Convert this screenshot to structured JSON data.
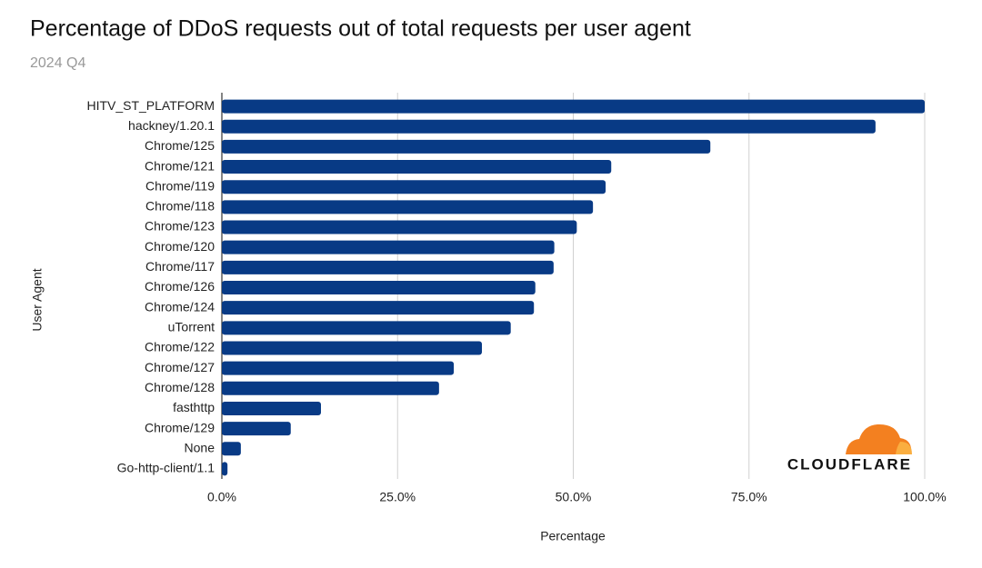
{
  "chart_data": {
    "type": "bar",
    "orientation": "horizontal",
    "title": "Percentage of DDoS requests out of total requests per user agent",
    "subtitle": "2024 Q4",
    "x_label": "Percentage",
    "y_label": "User Agent",
    "brand": "CLOUDFLARE",
    "categories": [
      "HITV_ST_PLATFORM",
      "hackney/1.20.1",
      "Chrome/125",
      "Chrome/121",
      "Chrome/119",
      "Chrome/118",
      "Chrome/123",
      "Chrome/120",
      "Chrome/117",
      "Chrome/126",
      "Chrome/124",
      "uTorrent",
      "Chrome/122",
      "Chrome/127",
      "Chrome/128",
      "fasthttp",
      "Chrome/129",
      "None",
      "Go-http-client/1.1"
    ],
    "values": [
      100,
      93.0,
      69.5,
      55.4,
      54.6,
      52.8,
      50.5,
      47.3,
      47.2,
      44.6,
      44.4,
      41.1,
      37.0,
      33.0,
      30.9,
      14.1,
      9.8,
      2.7,
      0.8
    ],
    "color": "#083a85",
    "xlim": [
      0,
      100
    ],
    "xticks": [
      {
        "value": 0,
        "label": "0.0%"
      },
      {
        "value": 25,
        "label": "25.0%"
      },
      {
        "value": 50,
        "label": "50.0%"
      },
      {
        "value": 75,
        "label": "75.0%"
      },
      {
        "value": 100,
        "label": "100.0%"
      }
    ],
    "grid": true
  }
}
